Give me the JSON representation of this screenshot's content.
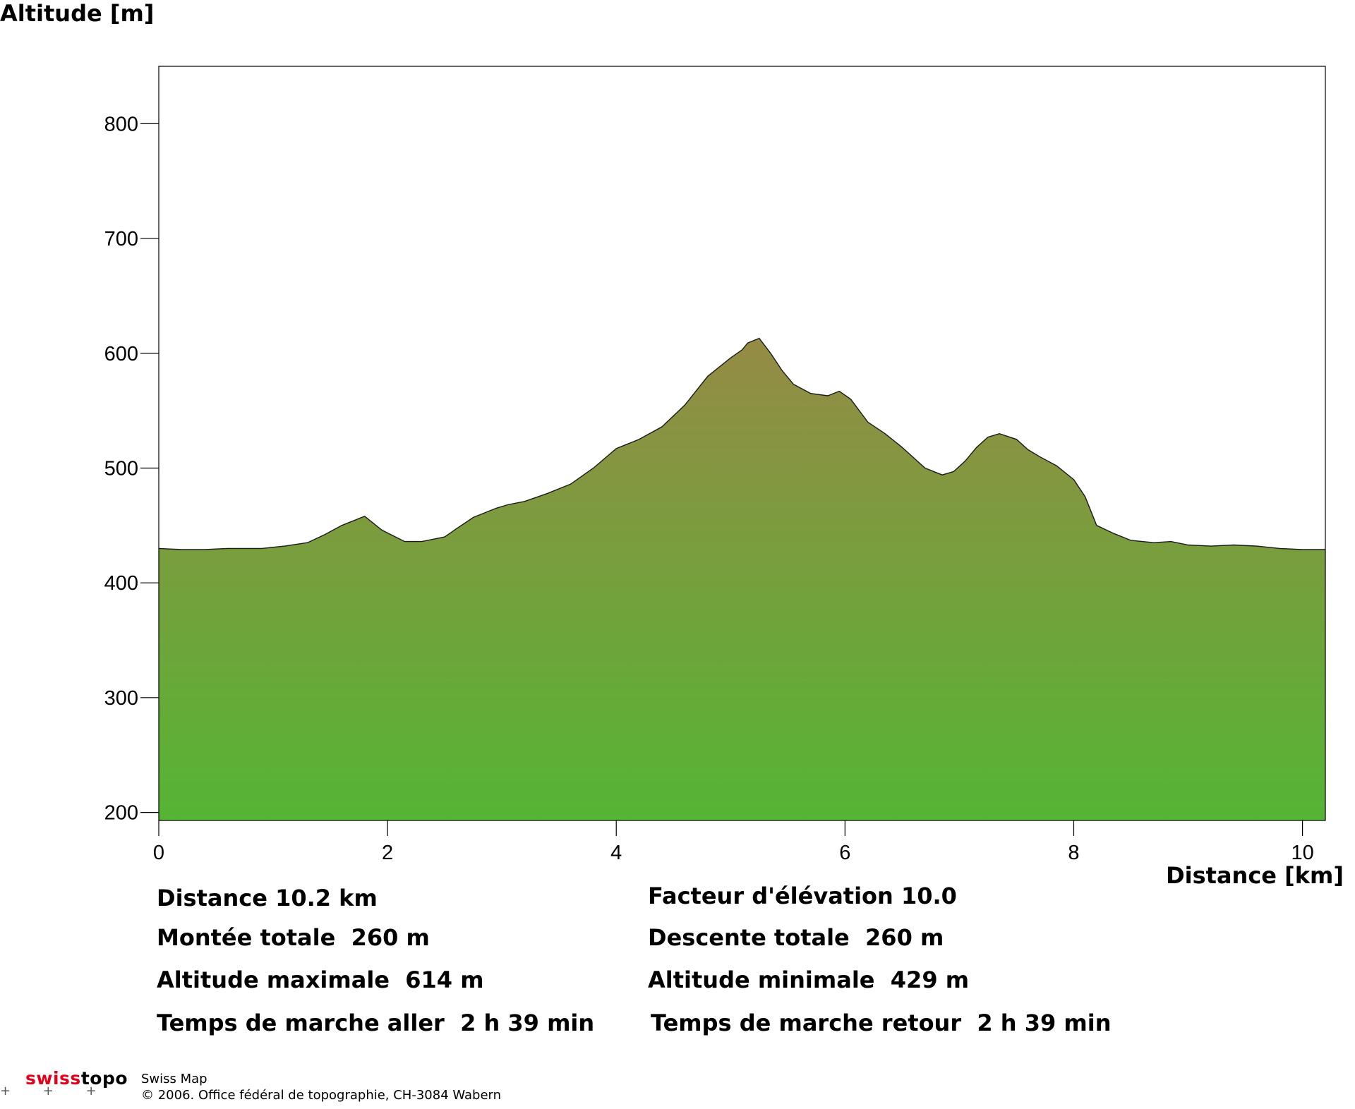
{
  "chart_data": {
    "type": "area",
    "ylabel": "Altitude [m]",
    "xlabel": "Distance [km]",
    "xlim": [
      0,
      10.2
    ],
    "ylim": [
      193,
      850
    ],
    "x_ticks": [
      0,
      2,
      4,
      6,
      8,
      10
    ],
    "y_ticks": [
      200,
      300,
      400,
      500,
      600,
      700,
      800
    ],
    "grid": false,
    "fill_colors": {
      "top": "#958b45",
      "bottom": "#55b534"
    },
    "series": [
      {
        "x": [
          0,
          0.2,
          0.4,
          0.6,
          0.9,
          1.1,
          1.3,
          1.45,
          1.6,
          1.8,
          1.95,
          2.05,
          2.15,
          2.3,
          2.5,
          2.6,
          2.75,
          2.95,
          3.05,
          3.2,
          3.4,
          3.6,
          3.8,
          4.0,
          4.2,
          4.4,
          4.6,
          4.8,
          5.0,
          5.1,
          5.15,
          5.25,
          5.35,
          5.45,
          5.55,
          5.7,
          5.85,
          5.95,
          6.05,
          6.2,
          6.35,
          6.5,
          6.7,
          6.85,
          6.95,
          7.05,
          7.15,
          7.25,
          7.35,
          7.5,
          7.6,
          7.7,
          7.85,
          8.0,
          8.1,
          8.2,
          8.35,
          8.5,
          8.7,
          8.85,
          9.0,
          9.2,
          9.4,
          9.6,
          9.8,
          10.0,
          10.2
        ],
        "y": [
          430,
          429,
          429,
          430,
          430,
          432,
          435,
          442,
          450,
          458,
          446,
          441,
          436,
          436,
          440,
          447,
          457,
          465,
          468,
          471,
          478,
          486,
          500,
          517,
          525,
          536,
          555,
          580,
          596,
          603,
          609,
          613,
          600,
          585,
          573,
          565,
          563,
          567,
          560,
          540,
          530,
          518,
          500,
          494,
          497,
          506,
          518,
          527,
          530,
          525,
          516,
          510,
          502,
          490,
          475,
          450,
          443,
          437,
          435,
          436,
          433,
          432,
          433,
          432,
          430,
          429,
          429
        ]
      }
    ]
  },
  "stats": {
    "distance": "Distance 10.2 km",
    "elevation_factor": "Facteur d'élévation 10.0",
    "ascent": "Montée totale  260 m",
    "descent": "Descente totale  260 m",
    "alt_max": "Altitude maximale  614 m",
    "alt_min": "Altitude minimale  429 m",
    "time_out": "Temps de marche aller  2 h 39 min",
    "time_back": "Temps de marche retour  2 h 39 min"
  },
  "footer": {
    "logo_swiss": "swiss",
    "logo_topo": "topo",
    "product": "Swiss Map",
    "copyright": "© 2006. Office fédéral de topographie, CH-3084 Wabern",
    "crosses": "+ + +"
  }
}
